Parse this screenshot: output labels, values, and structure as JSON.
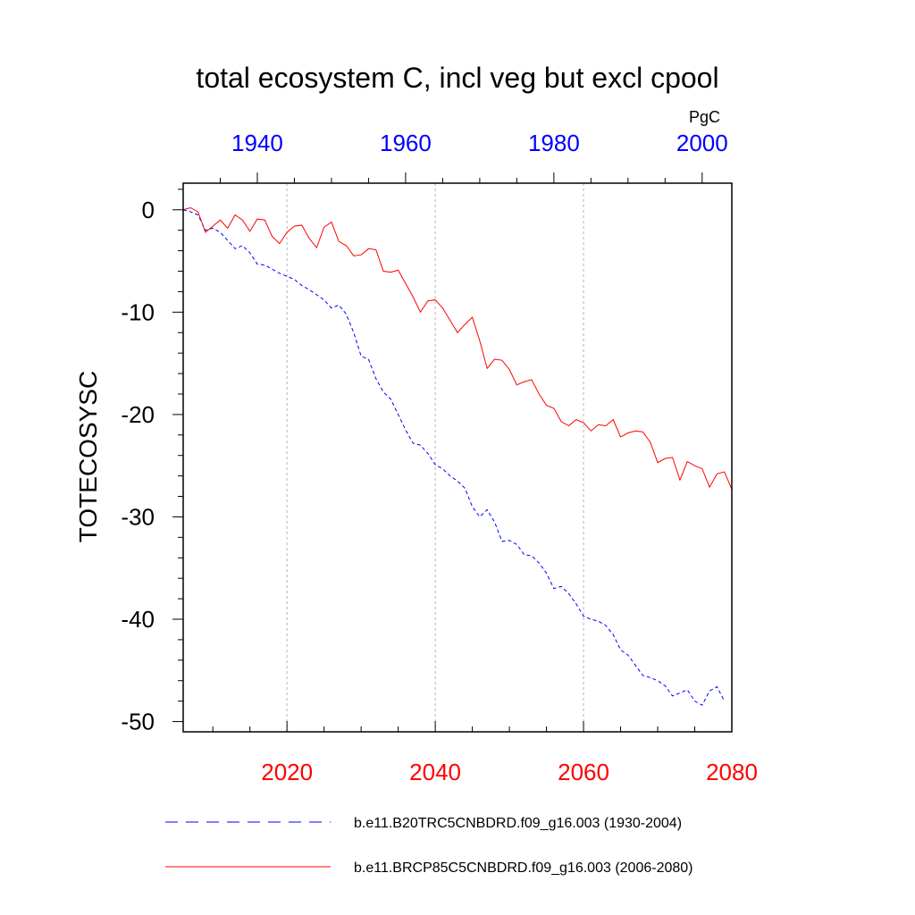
{
  "chart_data": {
    "type": "line",
    "title": "total ecosystem C, incl veg but excl cpool",
    "units": "PgC",
    "ylabel": "TOTECOSYSC",
    "ylim": [
      -51,
      2.6
    ],
    "yticks": [
      0,
      -10,
      -20,
      -30,
      -40,
      -50
    ],
    "ytick_labels": [
      "0",
      "-10",
      "-20",
      "-30",
      "-40",
      "-50"
    ],
    "bottom_axis": {
      "range": [
        2006,
        2080
      ],
      "ticks": [
        2020,
        2040,
        2060,
        2080
      ],
      "tick_labels": [
        "2020",
        "2040",
        "2060",
        "2080"
      ],
      "color": "#ff0000"
    },
    "top_axis": {
      "range": [
        1930,
        2004
      ],
      "ticks": [
        1940,
        1960,
        1980,
        2000
      ],
      "tick_labels": [
        "1940",
        "1960",
        "1980",
        "2000"
      ],
      "color": "#0000ff"
    },
    "vgrid_at": [
      2020,
      2040,
      2060
    ],
    "series": [
      {
        "name": "b.e11.B20TRC5CNBDRD.f09_g16.003 (1930-2004)",
        "color": "#0000ff",
        "dash": true,
        "x_start": 2006,
        "values": [
          0.0,
          -0.2,
          -0.5,
          -2.0,
          -1.8,
          -2.2,
          -3.0,
          -3.8,
          -3.5,
          -4.2,
          -5.3,
          -5.4,
          -5.8,
          -6.2,
          -6.5,
          -6.8,
          -7.4,
          -7.8,
          -8.3,
          -8.8,
          -9.6,
          -9.3,
          -10.2,
          -12.0,
          -14.3,
          -14.6,
          -16.5,
          -17.8,
          -18.5,
          -20.0,
          -21.5,
          -22.8,
          -23.0,
          -23.8,
          -24.9,
          -25.3,
          -26.0,
          -26.5,
          -27.2,
          -29.0,
          -30.0,
          -29.3,
          -30.5,
          -32.4,
          -32.3,
          -32.7,
          -33.7,
          -33.8,
          -34.5,
          -35.5,
          -37.0,
          -36.8,
          -37.5,
          -38.5,
          -39.7,
          -40.0,
          -40.2,
          -40.6,
          -41.5,
          -43.0,
          -43.5,
          -44.5,
          -45.5,
          -45.7,
          -46.0,
          -46.5,
          -47.5,
          -47.2,
          -46.9,
          -48.0,
          -48.4,
          -47.0,
          -46.6,
          -48.0
        ]
      },
      {
        "name": "b.e11.BRCP85C5CNBDRD.f09_g16.003 (2006-2080)",
        "color": "#ff0000",
        "dash": false,
        "x_start": 2006,
        "values": [
          0.0,
          0.2,
          -0.2,
          -2.2,
          -1.6,
          -1.0,
          -1.8,
          -0.5,
          -1.0,
          -2.1,
          -0.9,
          -1.0,
          -2.6,
          -3.3,
          -2.2,
          -1.6,
          -1.5,
          -2.8,
          -3.7,
          -1.7,
          -1.2,
          -3.1,
          -3.5,
          -4.5,
          -4.4,
          -3.8,
          -3.9,
          -6.0,
          -6.1,
          -5.9,
          -7.2,
          -8.5,
          -10.0,
          -8.9,
          -8.8,
          -9.6,
          -10.8,
          -12.0,
          -11.2,
          -10.5,
          -12.8,
          -15.5,
          -14.6,
          -14.7,
          -15.6,
          -17.1,
          -16.8,
          -16.6,
          -18.0,
          -19.1,
          -19.4,
          -20.7,
          -21.1,
          -20.5,
          -20.8,
          -21.6,
          -21.0,
          -21.1,
          -20.5,
          -22.2,
          -21.8,
          -21.6,
          -21.7,
          -22.7,
          -24.7,
          -24.3,
          -24.2,
          -26.4,
          -24.6,
          -25.0,
          -25.3,
          -27.1,
          -25.8,
          -25.6,
          -27.3
        ]
      }
    ]
  }
}
